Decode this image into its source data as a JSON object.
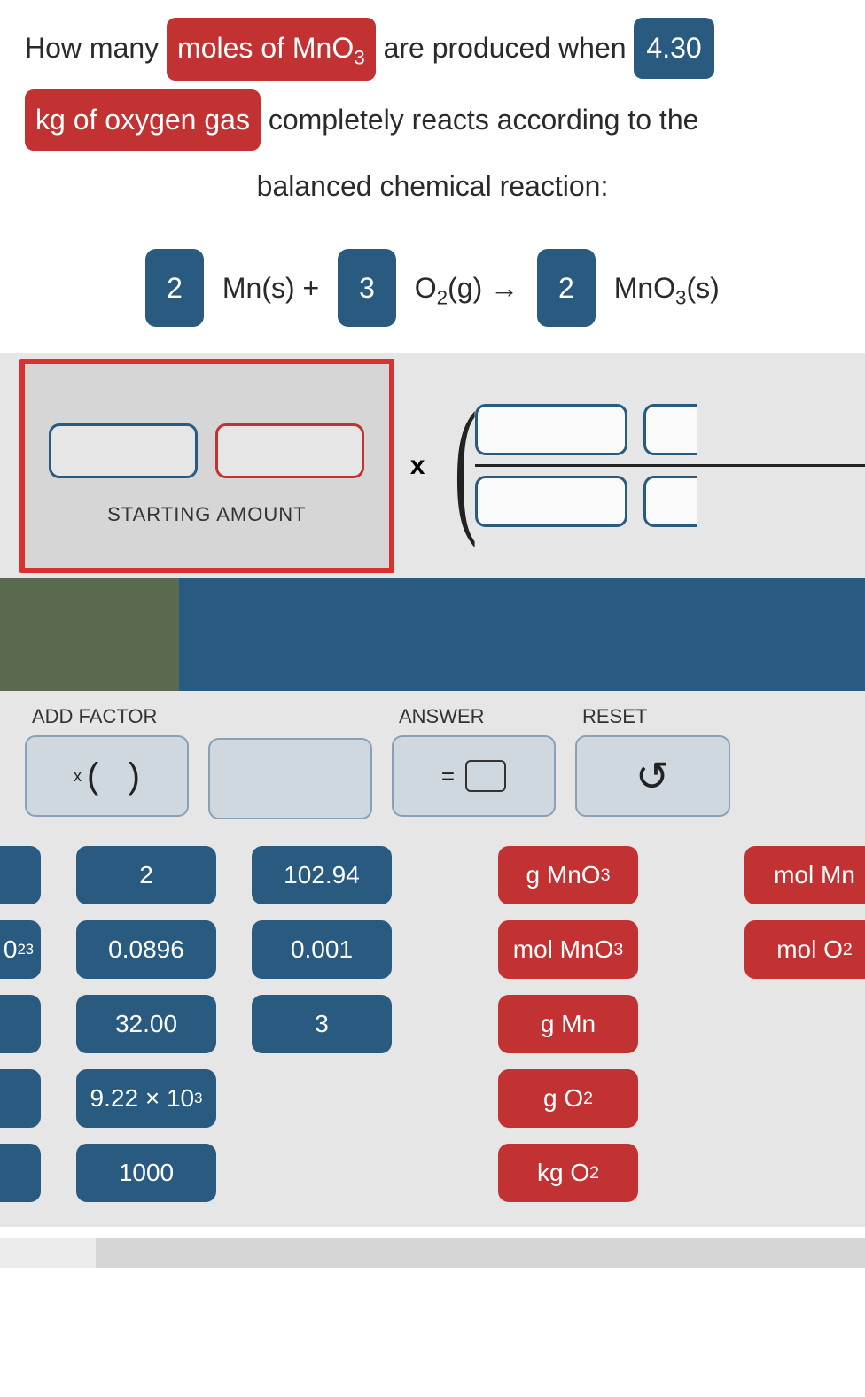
{
  "question": {
    "t1": "How many",
    "chip1": "moles of MnO",
    "chip1_sub": "3",
    "t2": "are produced when",
    "chip2": "4.30",
    "chip3": "kg of oxygen gas",
    "t3": "completely reacts according to the",
    "t4": "balanced chemical reaction:"
  },
  "equation": {
    "c1": "2",
    "s1a": "Mn(s) +",
    "c2": "3",
    "s2a": "O",
    "s2sub": "2",
    "s2b": "(g) →",
    "c3": "2",
    "s3a": "MnO",
    "s3sub": "3",
    "s3b": "(s)"
  },
  "start_label": "STARTING AMOUNT",
  "mult_sym": "x",
  "controls": {
    "add_factor": "ADD FACTOR",
    "answer": "ANSWER",
    "reset": "RESET",
    "eq": "="
  },
  "tiles": {
    "row1": {
      "stub": "",
      "a": "2",
      "b": "102.94",
      "c": "g MnO",
      "c_sub": "3",
      "d": "mol Mn"
    },
    "row2": {
      "stub_html": "0",
      "stub_sup": "23",
      "a": "0.0896",
      "b": "0.001",
      "c": "mol MnO",
      "c_sub": "3",
      "d": "mol O",
      "d_sub": "2"
    },
    "row3": {
      "a": "32.00",
      "b": "3",
      "c": "g Mn"
    },
    "row4": {
      "a": "9.22 × 10",
      "a_sup": "3",
      "c": "g O",
      "c_sub": "2"
    },
    "row5": {
      "a": "1000",
      "c": "kg O",
      "c_sub": "2"
    }
  },
  "colors": {
    "blue": "#295a80",
    "red": "#c23233",
    "olive": "#596a4e",
    "panel": "#e6e6e6",
    "ctrl": "#cfd7df"
  }
}
